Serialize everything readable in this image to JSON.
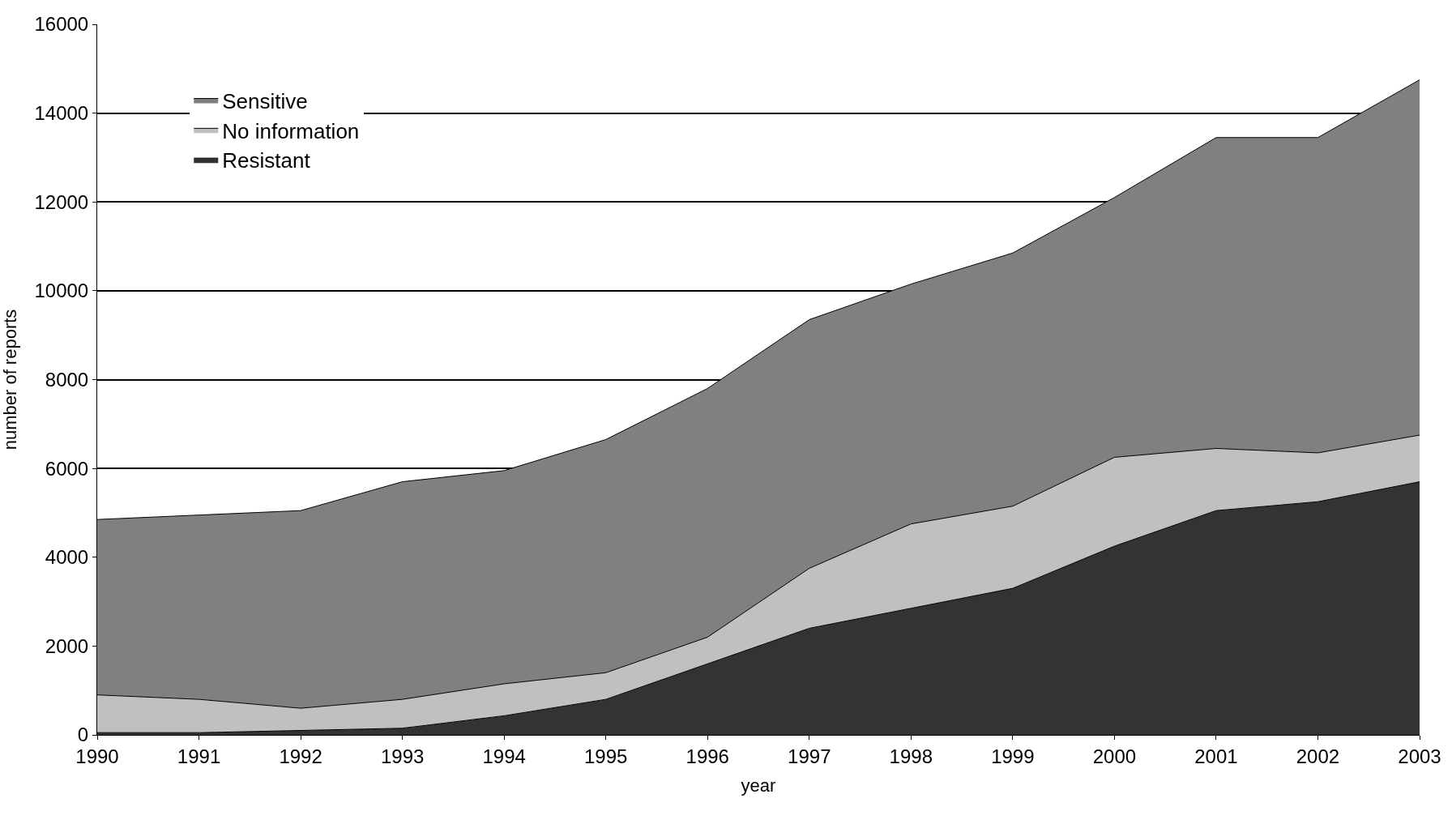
{
  "chart_data": {
    "type": "area",
    "stacked": true,
    "xlabel": "year",
    "ylabel": "number of reports",
    "x": [
      1990,
      1991,
      1992,
      1993,
      1994,
      1995,
      1996,
      1997,
      1998,
      1999,
      2000,
      2001,
      2002,
      2003
    ],
    "series": [
      {
        "name": "Resistant",
        "color": "#333333",
        "values": [
          50,
          50,
          100,
          150,
          430,
          800,
          1600,
          2400,
          2850,
          3300,
          4250,
          5050,
          5250,
          5700
        ]
      },
      {
        "name": "No information",
        "color": "#c0c0c0",
        "values": [
          850,
          750,
          500,
          650,
          720,
          600,
          600,
          1350,
          1900,
          1850,
          2000,
          1400,
          1100,
          1050
        ]
      },
      {
        "name": "Sensitive",
        "color": "#808080",
        "values": [
          3950,
          4150,
          4450,
          4900,
          4800,
          5250,
          5600,
          5600,
          5400,
          5700,
          5850,
          7000,
          7100,
          8000
        ]
      }
    ],
    "xlim": [
      1990,
      2003
    ],
    "xticks": [
      1990,
      1991,
      1992,
      1993,
      1994,
      1995,
      1996,
      1997,
      1998,
      1999,
      2000,
      2001,
      2002,
      2003
    ],
    "ylim": [
      0,
      16000
    ],
    "yticks": [
      0,
      2000,
      4000,
      6000,
      8000,
      10000,
      12000,
      14000,
      16000
    ],
    "grid": "y",
    "legend": "top left"
  }
}
